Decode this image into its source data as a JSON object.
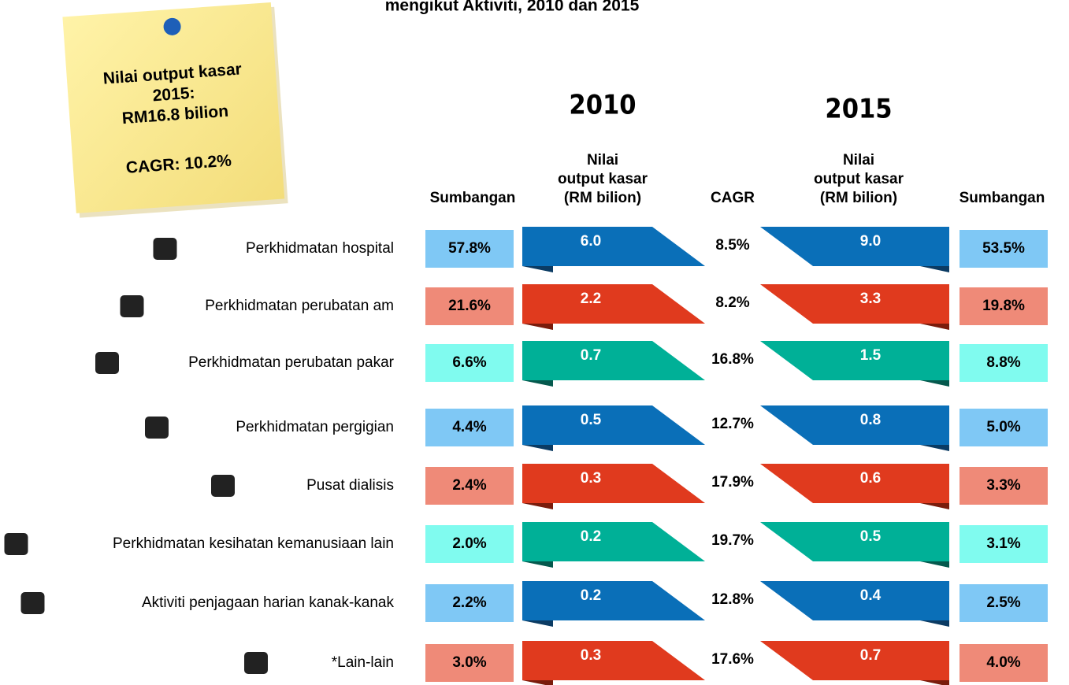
{
  "title": "mengikut Aktiviti, 2010 dan 2015",
  "note": {
    "lines": [
      "Nilai output kasar",
      "2015:",
      "RM16.8 bilion",
      "CAGR: 10.2%"
    ]
  },
  "years": [
    "2010",
    "2015"
  ],
  "headers": [
    [
      "Sumbangan"
    ],
    [
      "Nilai",
      "output kasar",
      "(RM bilion)"
    ],
    [
      "CAGR"
    ],
    [
      "Nilai",
      "output kasar",
      "(RM bilion)"
    ],
    [
      "Sumbangan"
    ]
  ],
  "rows": [
    [
      "Perkhidmatan hospital",
      "57.8%",
      "6.0",
      "8.5%",
      "9.0",
      "53.5%"
    ],
    [
      "Perkhidmatan perubatan am",
      "21.6%",
      "2.2",
      "8.2%",
      "3.3",
      "19.8%"
    ],
    [
      "Perkhidmatan perubatan pakar",
      "6.6%",
      "0.7",
      "16.8%",
      "1.5",
      "8.8%"
    ],
    [
      "Perkhidmatan pergigian",
      "4.4%",
      "0.5",
      "12.7%",
      "0.8",
      "5.0%"
    ],
    [
      "Pusat dialisis",
      "2.4%",
      "0.3",
      "17.9%",
      "0.6",
      "3.3%"
    ],
    [
      "Perkhidmatan kesihatan kemanusiaan lain",
      "2.0%",
      "0.2",
      "19.7%",
      "0.5",
      "3.1%"
    ],
    [
      "Aktiviti penjagaan harian kanak-kanak",
      "2.2%",
      "0.2",
      "12.8%",
      "0.4",
      "2.5%"
    ],
    [
      "*Lain-lain",
      "3.0%",
      "0.3",
      "17.6%",
      "0.7",
      "4.0%"
    ]
  ]
}
